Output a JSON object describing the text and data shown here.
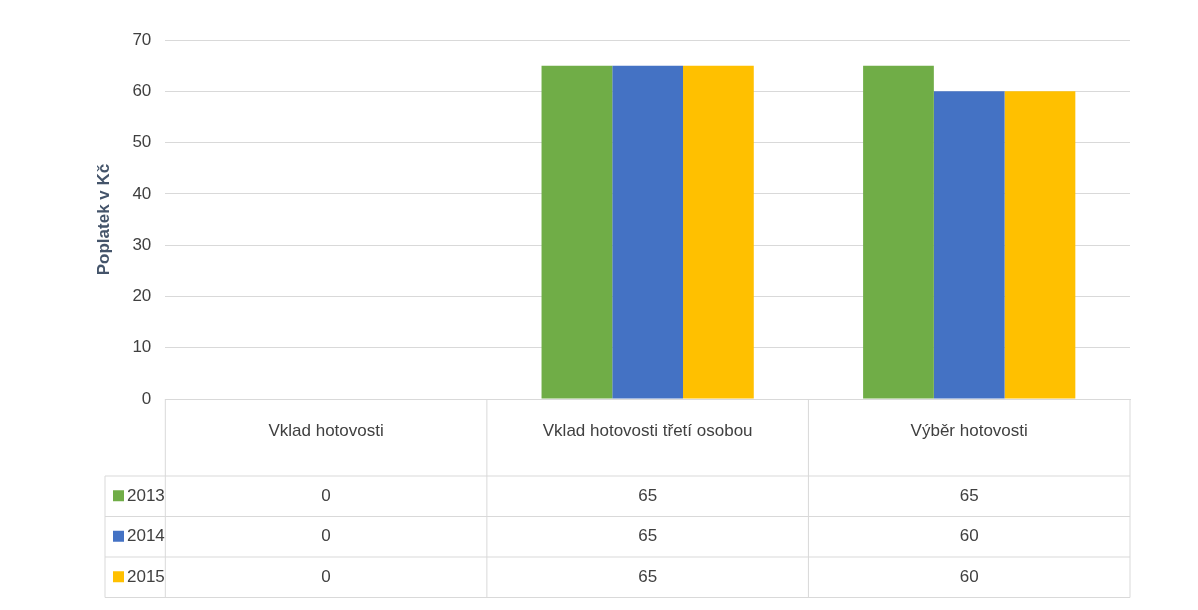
{
  "chart_data": {
    "type": "bar",
    "ylabel": "Poplatek v Kč",
    "categories": [
      "Vklad hotovosti",
      "Vklad hotovosti třetí osobou",
      "Výběr hotovosti"
    ],
    "series": [
      {
        "name": "2013",
        "color": "#70ad47",
        "values": [
          0,
          65,
          65
        ]
      },
      {
        "name": "2014",
        "color": "#4472c4",
        "values": [
          0,
          65,
          60
        ]
      },
      {
        "name": "2015",
        "color": "#ffc000",
        "values": [
          0,
          65,
          60
        ]
      }
    ],
    "ylim": [
      0,
      70
    ],
    "yticks": [
      0,
      10,
      20,
      30,
      40,
      50,
      60,
      70
    ],
    "grid": "y",
    "legend": "bottom",
    "data_labels": true
  }
}
